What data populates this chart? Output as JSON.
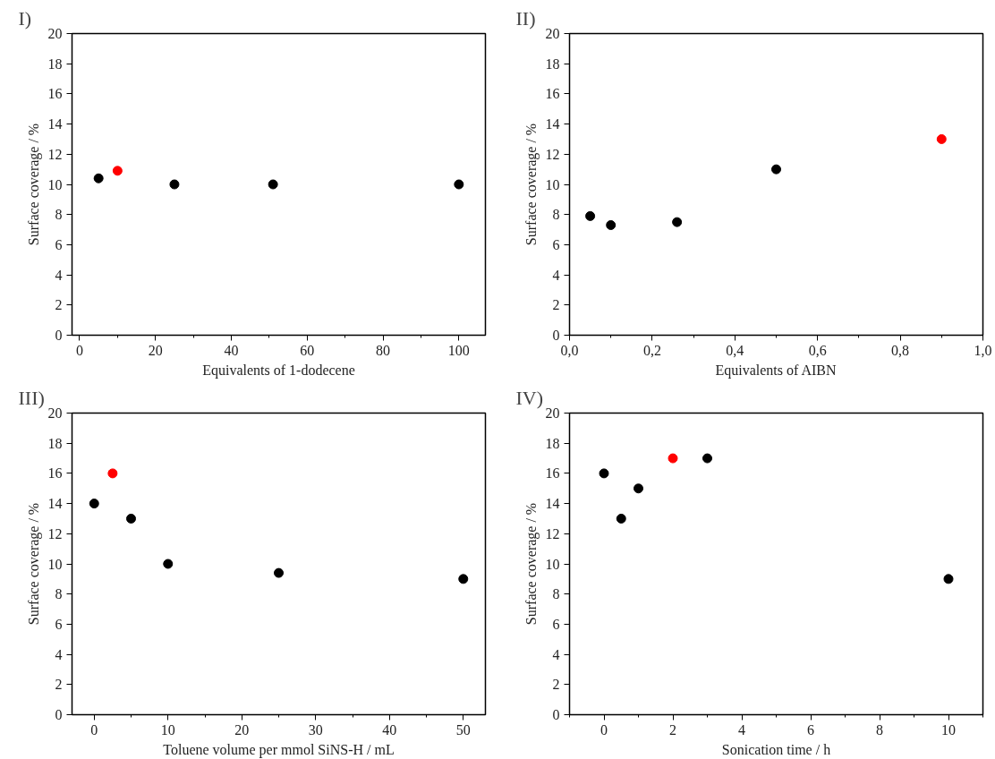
{
  "chart_data": [
    {
      "type": "scatter",
      "title": "I)",
      "xlabel": "Equivalents of 1-dodecene",
      "ylabel": "Surface coverage / %",
      "marker": "circle",
      "grid": false,
      "xlim": [
        -2,
        107
      ],
      "xticks": [
        0,
        {
          "value": 10,
          "label": null
        },
        20,
        {
          "value": 30,
          "label": null
        },
        40,
        {
          "value": 50,
          "label": null
        },
        60,
        {
          "value": 70,
          "label": null
        },
        80,
        {
          "value": 90,
          "label": null
        },
        100
      ],
      "ylim": [
        0,
        20
      ],
      "yticks": [
        0,
        2,
        4,
        6,
        8,
        10,
        12,
        14,
        16,
        18,
        20
      ],
      "series": [
        {
          "color": "#000000",
          "x": [
            5,
            25,
            51,
            100
          ],
          "values": [
            10.4,
            10,
            10,
            10
          ]
        },
        {
          "color": "#ff0000",
          "x": [
            10
          ],
          "values": [
            10.9
          ]
        }
      ]
    },
    {
      "type": "scatter",
      "title": "II)",
      "xlabel": "Equivalents of AIBN",
      "ylabel": "Surface coverage / %",
      "marker": "circle",
      "grid": false,
      "xlim": [
        0,
        1
      ],
      "xticks": [
        {
          "value": 0,
          "label": "0,0"
        },
        {
          "value": 0.1,
          "label": null
        },
        {
          "value": 0.2,
          "label": "0,2"
        },
        {
          "value": 0.3,
          "label": null
        },
        {
          "value": 0.4,
          "label": "0,4"
        },
        {
          "value": 0.5,
          "label": null
        },
        {
          "value": 0.6,
          "label": "0,6"
        },
        {
          "value": 0.7,
          "label": null
        },
        {
          "value": 0.8,
          "label": "0,8"
        },
        {
          "value": 0.9,
          "label": null
        },
        {
          "value": 1,
          "label": "1,0"
        }
      ],
      "ylim": [
        0,
        20
      ],
      "yticks": [
        0,
        2,
        4,
        6,
        8,
        10,
        12,
        14,
        16,
        18,
        20
      ],
      "series": [
        {
          "color": "#000000",
          "x": [
            0.05,
            0.1,
            0.26,
            0.5
          ],
          "values": [
            7.9,
            7.3,
            7.5,
            11
          ]
        },
        {
          "color": "#ff0000",
          "x": [
            0.9
          ],
          "values": [
            13
          ]
        }
      ]
    },
    {
      "type": "scatter",
      "title": "III)",
      "xlabel": "Toluene volume per mmol SiNS-H / mL",
      "ylabel": "Surface coverage / %",
      "marker": "circle",
      "grid": false,
      "xlim": [
        -3,
        53
      ],
      "xticks": [
        0,
        {
          "value": 5,
          "label": null
        },
        10,
        {
          "value": 15,
          "label": null
        },
        20,
        {
          "value": 25,
          "label": null
        },
        30,
        {
          "value": 35,
          "label": null
        },
        40,
        {
          "value": 45,
          "label": null
        },
        50
      ],
      "ylim": [
        0,
        20
      ],
      "yticks": [
        0,
        2,
        4,
        6,
        8,
        10,
        12,
        14,
        16,
        18,
        20
      ],
      "series": [
        {
          "color": "#000000",
          "x": [
            0,
            5,
            10,
            25,
            50
          ],
          "values": [
            14,
            13,
            10,
            9.4,
            9
          ]
        },
        {
          "color": "#ff0000",
          "x": [
            2.5
          ],
          "values": [
            16
          ]
        }
      ]
    },
    {
      "type": "scatter",
      "title": "IV)",
      "xlabel": "Sonication time / h",
      "ylabel": "Surface coverage / %",
      "marker": "circle",
      "grid": false,
      "xlim": [
        -1,
        11
      ],
      "xticks": [
        {
          "value": -1,
          "label": null
        },
        0,
        {
          "value": 1,
          "label": null
        },
        2,
        {
          "value": 3,
          "label": null
        },
        4,
        {
          "value": 5,
          "label": null
        },
        6,
        {
          "value": 7,
          "label": null
        },
        8,
        {
          "value": 9,
          "label": null
        },
        10,
        {
          "value": 11,
          "label": null
        }
      ],
      "ylim": [
        0,
        20
      ],
      "yticks": [
        0,
        2,
        4,
        6,
        8,
        10,
        12,
        14,
        16,
        18,
        20
      ],
      "series": [
        {
          "color": "#000000",
          "x": [
            0,
            0.5,
            1,
            3,
            10
          ],
          "values": [
            16,
            13,
            15,
            17,
            9
          ]
        },
        {
          "color": "#ff0000",
          "x": [
            2
          ],
          "values": [
            17
          ]
        }
      ]
    }
  ]
}
